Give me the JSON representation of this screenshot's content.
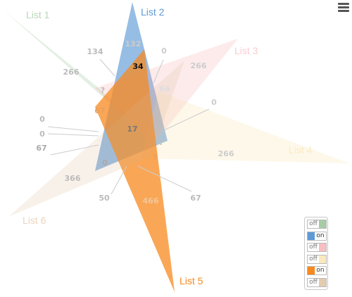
{
  "chart_data": {
    "type": "venn",
    "sets": [
      {
        "name": "List 1",
        "color": "#7fb77e",
        "state": "off"
      },
      {
        "name": "List 2",
        "color": "#5e9ad6",
        "state": "on"
      },
      {
        "name": "List 3",
        "color": "#f5a3a8",
        "state": "off"
      },
      {
        "name": "List 4",
        "color": "#f7e0a0",
        "state": "off"
      },
      {
        "name": "List 5",
        "color": "#f7891f",
        "state": "on"
      },
      {
        "name": "List 6",
        "color": "#d9b38c",
        "state": "off"
      }
    ],
    "regions": [
      {
        "id": "r-l1-only",
        "value": "266"
      },
      {
        "id": "r-l1-l2",
        "value": "134"
      },
      {
        "id": "r-l2-only",
        "value": "132"
      },
      {
        "id": "r-l2-l5",
        "value": "34"
      },
      {
        "id": "r-l2-l3",
        "value": "0"
      },
      {
        "id": "r-l3-only",
        "value": "266"
      },
      {
        "id": "r-l3-l5",
        "value": "66"
      },
      {
        "id": "r-l3-l4",
        "value": "0"
      },
      {
        "id": "r-a",
        "value": "?"
      },
      {
        "id": "r-b",
        "value": "67"
      },
      {
        "id": "r-c",
        "value": "17"
      },
      {
        "id": "r-d",
        "value": "0"
      },
      {
        "id": "r-e",
        "value": "0"
      },
      {
        "id": "r-f",
        "value": "67"
      },
      {
        "id": "r-g",
        "value": "?"
      },
      {
        "id": "r-l4-only",
        "value": "266"
      },
      {
        "id": "r-h",
        "value": "0"
      },
      {
        "id": "r-i",
        "value": "?"
      },
      {
        "id": "r-l6-only",
        "value": "366"
      },
      {
        "id": "r-j",
        "value": "50"
      },
      {
        "id": "r-l5-only",
        "value": "466"
      },
      {
        "id": "r-k",
        "value": "67"
      }
    ],
    "legend": "bottom-right"
  },
  "toggle_labels": {
    "on": "on",
    "off": "off"
  }
}
